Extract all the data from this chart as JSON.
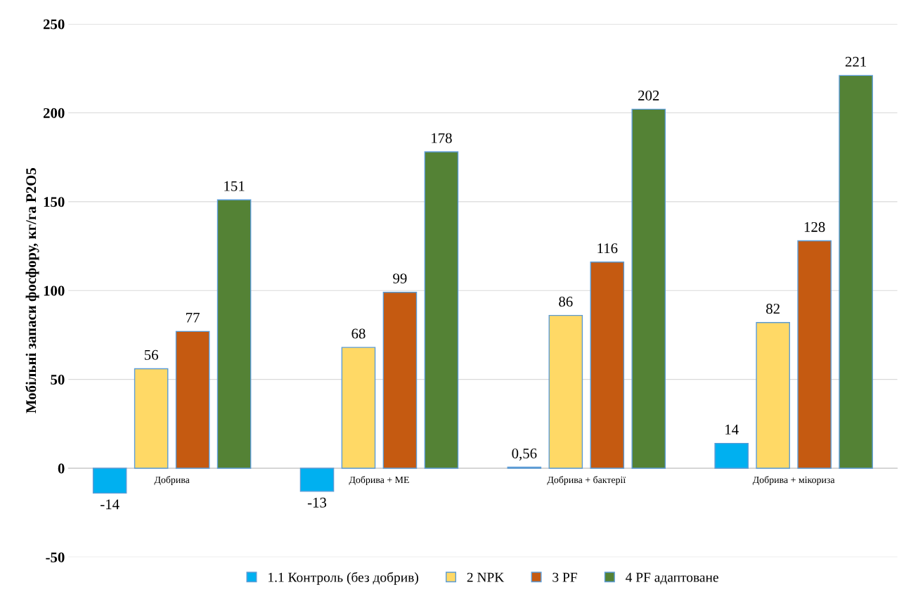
{
  "chart_data": {
    "type": "bar",
    "ylabel": "Мобільні запаси фосфору, кг/га P2O5",
    "categories": [
      "Добрива",
      "Добрива + МЕ",
      "Добрива + бактерії",
      "Добрива + мікориза"
    ],
    "series": [
      {
        "name": "1.1 Контроль (без добрив)",
        "color": "#00b0f0",
        "values": [
          -14,
          -13,
          0.56,
          14
        ],
        "value_labels": [
          "-14",
          "-13",
          "0,56",
          "14"
        ]
      },
      {
        "name": "2 NPK",
        "color": "#ffd966",
        "values": [
          56,
          68,
          86,
          82
        ],
        "value_labels": [
          "56",
          "68",
          "86",
          "82"
        ]
      },
      {
        "name": "3 PF",
        "color": "#c55a11",
        "values": [
          77,
          99,
          116,
          128
        ],
        "value_labels": [
          "77",
          "99",
          "116",
          "128"
        ]
      },
      {
        "name": "4 PF адаптоване",
        "color": "#548235",
        "values": [
          151,
          178,
          202,
          221
        ],
        "value_labels": [
          "151",
          "178",
          "202",
          "221"
        ]
      }
    ],
    "ylim": [
      -50,
      250
    ],
    "yticks": [
      -50,
      0,
      50,
      100,
      150,
      200,
      250
    ],
    "grid": "y",
    "legend": "bottom"
  }
}
